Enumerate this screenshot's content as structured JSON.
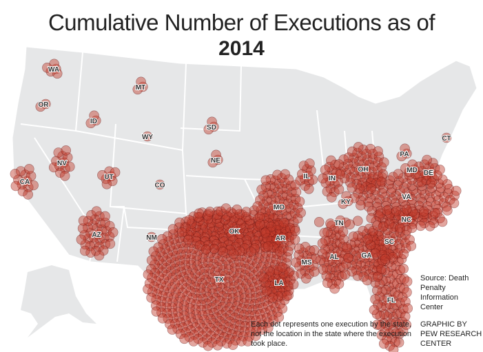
{
  "title": {
    "line1": "Cumulative Number of Executions as of",
    "line2": "2014"
  },
  "source": "Source: Death Penalty Information Center",
  "credit": "GRAPHIC BY PEW RESEARCH CENTER",
  "dot_note": "Each dot represents one execution by the state, not the location in the state where the execution took place.",
  "colors": {
    "land": "#e6e7e8",
    "dot_fill": "#c0392b",
    "dot_stroke": "#5a0e0e"
  },
  "states": [
    {
      "code": "TX",
      "executions": 518
    },
    {
      "code": "OK",
      "executions": 111
    },
    {
      "code": "VA",
      "executions": 110
    },
    {
      "code": "FL",
      "executions": 89
    },
    {
      "code": "MO",
      "executions": 80
    },
    {
      "code": "GA",
      "executions": 60
    },
    {
      "code": "AL",
      "executions": 56
    },
    {
      "code": "OH",
      "executions": 53
    },
    {
      "code": "NC",
      "executions": 43
    },
    {
      "code": "SC",
      "executions": 43
    },
    {
      "code": "AZ",
      "executions": 37
    },
    {
      "code": "LA",
      "executions": 28
    },
    {
      "code": "AR",
      "executions": 27
    },
    {
      "code": "MS",
      "executions": 21
    },
    {
      "code": "IN",
      "executions": 20
    },
    {
      "code": "DE",
      "executions": 16
    },
    {
      "code": "CA",
      "executions": 13
    },
    {
      "code": "IL",
      "executions": 12
    },
    {
      "code": "NV",
      "executions": 12
    },
    {
      "code": "UT",
      "executions": 7
    },
    {
      "code": "TN",
      "executions": 6
    },
    {
      "code": "MD",
      "executions": 5
    },
    {
      "code": "WA",
      "executions": 5
    },
    {
      "code": "NE",
      "executions": 3
    },
    {
      "code": "MT",
      "executions": 3
    },
    {
      "code": "KY",
      "executions": 3
    },
    {
      "code": "PA",
      "executions": 3
    },
    {
      "code": "ID",
      "executions": 3
    },
    {
      "code": "SD",
      "executions": 3
    },
    {
      "code": "OR",
      "executions": 2
    },
    {
      "code": "CO",
      "executions": 1
    },
    {
      "code": "NM",
      "executions": 1
    },
    {
      "code": "WY",
      "executions": 1
    },
    {
      "code": "CT",
      "executions": 1
    }
  ]
}
